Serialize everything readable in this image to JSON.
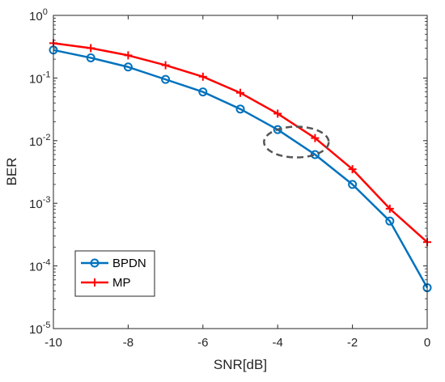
{
  "chart_data": {
    "type": "line",
    "yscale": "log",
    "xlabel": "SNR[dB]",
    "ylabel": "BER",
    "xlim": [
      -10,
      0
    ],
    "ylim": [
      1e-05,
      1
    ],
    "grid": false,
    "legend_position": "bottom-left",
    "x": [
      -10,
      -9,
      -8,
      -7,
      -6,
      -5,
      -4,
      -3,
      -2,
      -1,
      0
    ],
    "x_tick_labels": [
      "-10",
      "-8",
      "-6",
      "-4",
      "-2",
      "0"
    ],
    "y_tick_labels": [
      {
        "base": "10",
        "exp": "0"
      },
      {
        "base": "10",
        "exp": "-1"
      },
      {
        "base": "10",
        "exp": "-2"
      },
      {
        "base": "10",
        "exp": "-3"
      },
      {
        "base": "10",
        "exp": "-4"
      },
      {
        "base": "10",
        "exp": "-5"
      }
    ],
    "series": [
      {
        "name": "BPDN",
        "color": "#0072BD",
        "marker": "circle",
        "values": [
          0.28,
          0.21,
          0.15,
          0.095,
          0.06,
          0.032,
          0.015,
          0.006,
          0.002,
          0.00052,
          4.5e-05
        ]
      },
      {
        "name": "MP",
        "color": "#FF0000",
        "marker": "plus",
        "values": [
          0.36,
          0.3,
          0.23,
          0.16,
          0.105,
          0.058,
          0.027,
          0.011,
          0.0035,
          0.00082,
          0.00024
        ]
      }
    ],
    "annotation": {
      "shape": "dashed-ellipse",
      "x_center": -3.5,
      "y_center": 0.0095,
      "color": "#555555"
    }
  }
}
